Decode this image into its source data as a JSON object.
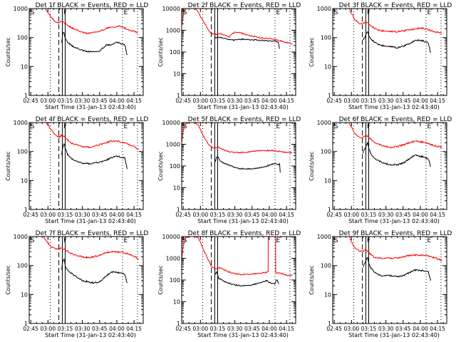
{
  "figure": {
    "layout": "3x3 grid of light-curve panels",
    "common": {
      "ylabel": "Counts/sec",
      "xlabel": "Start Time (31-Jan-13 02:43:40)",
      "x_tick_labels": [
        "02:45",
        "03:00",
        "03:15",
        "03:30",
        "03:45",
        "04:00",
        "04:15"
      ],
      "x_range_minutes_from_0245": [
        -1.33,
        98
      ],
      "legend_black": "Events",
      "legend_red": "LLD",
      "colors": {
        "events": "#000000",
        "lld": "#ff0000"
      },
      "markers": {
        "labels": [
          "S",
          "F",
          "E"
        ],
        "dotted_minutes": [
          17,
          80,
          93
        ],
        "dashed_minutes": [
          24.5
        ],
        "solid_minutes": [
          27.5,
          30
        ]
      }
    }
  },
  "chart_data": [
    {
      "type": "line",
      "title": "Det 1f BLACK = Events, RED = LLD",
      "yscale": "log",
      "ylim": [
        1,
        1000
      ],
      "y_tick_labels": [
        "1",
        "10",
        "100",
        "1000"
      ],
      "x_minutes": [
        0,
        10,
        15,
        20,
        22,
        25,
        27,
        28,
        29,
        30,
        33,
        36,
        40,
        45,
        50,
        55,
        60,
        65,
        70,
        75,
        78,
        80,
        82,
        85,
        88,
        91,
        93
      ],
      "series": [
        {
          "name": "LLD",
          "values": [
            2000,
            1500,
            700,
            400,
            330,
            330,
            380,
            360,
            330,
            300,
            250,
            210,
            180,
            150,
            140,
            150,
            170,
            200,
            230,
            240,
            250,
            230,
            210,
            190,
            170,
            160,
            150
          ]
        },
        {
          "name": "Events",
          "x_minutes": [
            27,
            28,
            29,
            30,
            32,
            35,
            38,
            42,
            46,
            50,
            55,
            60,
            63,
            66,
            70,
            74,
            77,
            80,
            82,
            84
          ],
          "values": [
            70,
            150,
            150,
            90,
            70,
            55,
            45,
            40,
            35,
            33,
            32,
            35,
            45,
            55,
            55,
            70,
            65,
            60,
            55,
            25
          ]
        }
      ]
    },
    {
      "type": "line",
      "title": "Det 2f BLACK = Events, RED = LLD",
      "yscale": "log",
      "ylim": [
        1,
        10000
      ],
      "y_tick_labels": [
        "1",
        "10",
        "100",
        "1000",
        "10000"
      ],
      "x_minutes": [
        -1.3,
        0,
        2,
        6,
        10,
        13,
        16,
        19,
        22,
        25,
        28,
        32,
        36,
        40,
        42,
        45,
        50,
        55,
        60,
        65,
        70,
        75,
        80,
        85,
        90,
        95
      ],
      "series": [
        {
          "name": "LLD",
          "values": [
            1500,
            5000,
            10000,
            10000,
            10000,
            7000,
            3500,
            2000,
            1000,
            700,
            650,
            700,
            600,
            500,
            650,
            800,
            780,
            600,
            550,
            480,
            430,
            420,
            380,
            330,
            280,
            240
          ]
        },
        {
          "name": "Events",
          "x_minutes": [
            28,
            30,
            33,
            36,
            40,
            44,
            48,
            52,
            56,
            60,
            65,
            70,
            75,
            80,
            83,
            84
          ],
          "values": [
            450,
            480,
            460,
            420,
            380,
            350,
            380,
            390,
            360,
            370,
            350,
            340,
            320,
            320,
            280,
            140
          ]
        }
      ],
      "annotations": [
        "S",
        "E"
      ]
    },
    {
      "type": "line",
      "title": "Det 3f BLACK = Events, RED = LLD",
      "yscale": "log",
      "ylim": [
        1,
        1000
      ],
      "y_tick_labels": [
        "1",
        "10",
        "100",
        "1000"
      ],
      "x_minutes": [
        -1.3,
        0,
        10,
        15,
        18,
        22,
        25,
        27,
        29,
        31,
        35,
        40,
        45,
        50,
        55,
        60,
        65,
        70,
        75,
        80,
        85,
        90,
        94
      ],
      "series": [
        {
          "name": "LLD",
          "values": [
            800,
            2000,
            1600,
            700,
            400,
            310,
            300,
            350,
            330,
            280,
            210,
            175,
            165,
            160,
            162,
            170,
            185,
            200,
            210,
            200,
            170,
            150,
            140
          ]
        },
        {
          "name": "Events",
          "x_minutes": [
            25,
            27,
            28,
            29,
            30,
            32,
            35,
            40,
            45,
            50,
            55,
            60,
            65,
            70,
            74,
            78,
            80,
            82,
            84
          ],
          "values": [
            80,
            110,
            150,
            160,
            120,
            90,
            70,
            55,
            50,
            48,
            45,
            50,
            60,
            80,
            80,
            75,
            70,
            65,
            30
          ]
        }
      ]
    },
    {
      "type": "line",
      "title": "Det 4f BLACK = Events, RED = LLD",
      "yscale": "log",
      "ylim": [
        1,
        1000
      ],
      "y_tick_labels": [
        "1",
        "10",
        "100",
        "1000"
      ],
      "x_minutes": [
        -1.3,
        0,
        10,
        15,
        20,
        23,
        25,
        27,
        29,
        31,
        35,
        40,
        45,
        50,
        55,
        60,
        65,
        70,
        75,
        80,
        85,
        90,
        94
      ],
      "series": [
        {
          "name": "LLD",
          "values": [
            900,
            2000,
            1500,
            800,
            450,
            340,
            320,
            370,
            340,
            270,
            200,
            170,
            150,
            140,
            150,
            170,
            200,
            230,
            230,
            210,
            180,
            150,
            120
          ]
        },
        {
          "name": "Events",
          "x_minutes": [
            27,
            28,
            29,
            30,
            32,
            35,
            40,
            45,
            50,
            55,
            60,
            65,
            70,
            74,
            78,
            82,
            84
          ],
          "values": [
            80,
            150,
            190,
            130,
            80,
            60,
            45,
            40,
            38,
            40,
            42,
            50,
            60,
            70,
            65,
            60,
            25
          ]
        }
      ]
    },
    {
      "type": "line",
      "title": "Det 5f BLACK = Events, RED = LLD",
      "yscale": "log",
      "ylim": [
        1,
        10000
      ],
      "y_tick_labels": [
        "1",
        "10",
        "100",
        "1000",
        "10000"
      ],
      "x_minutes": [
        -1.3,
        0,
        2,
        6,
        10,
        13,
        16,
        19,
        22,
        25,
        28,
        30,
        32,
        36,
        40,
        45,
        50,
        55,
        60,
        65,
        70,
        75,
        80,
        85,
        90,
        95
      ],
      "series": [
        {
          "name": "LLD",
          "values": [
            1300,
            4000,
            9000,
            10000,
            10000,
            8000,
            3500,
            1800,
            1000,
            750,
            650,
            750,
            650,
            550,
            450,
            420,
            420,
            430,
            480,
            500,
            520,
            520,
            500,
            460,
            430,
            400
          ]
        },
        {
          "name": "Events",
          "x_minutes": [
            28,
            29,
            30,
            32,
            35,
            40,
            45,
            50,
            55,
            60,
            65,
            70,
            75,
            80,
            82,
            84,
            84.5
          ],
          "values": [
            150,
            250,
            280,
            170,
            140,
            110,
            85,
            75,
            75,
            75,
            80,
            90,
            110,
            130,
            120,
            120,
            50
          ]
        }
      ],
      "annotations": [
        "S",
        "E"
      ]
    },
    {
      "type": "line",
      "title": "Det 6f BLACK = Events, RED = LLD",
      "yscale": "log",
      "ylim": [
        1,
        1000
      ],
      "y_tick_labels": [
        "1",
        "10",
        "100",
        "1000"
      ],
      "x_minutes": [
        -1.3,
        0,
        10,
        15,
        18,
        22,
        25,
        27,
        29,
        31,
        35,
        40,
        45,
        50,
        55,
        60,
        65,
        70,
        75,
        80,
        85,
        90,
        94
      ],
      "series": [
        {
          "name": "LLD",
          "values": [
            900,
            2000,
            1500,
            700,
            400,
            320,
            300,
            370,
            340,
            280,
            210,
            170,
            150,
            140,
            150,
            170,
            200,
            230,
            220,
            200,
            170,
            150,
            140
          ]
        },
        {
          "name": "Events",
          "x_minutes": [
            25,
            27,
            28,
            29,
            30,
            32,
            35,
            40,
            45,
            50,
            55,
            60,
            65,
            70,
            74,
            78,
            82,
            84
          ],
          "values": [
            90,
            140,
            170,
            200,
            130,
            80,
            60,
            45,
            38,
            35,
            35,
            40,
            55,
            75,
            70,
            65,
            55,
            30
          ]
        }
      ]
    },
    {
      "type": "line",
      "title": "Det 7f BLACK = Events, RED = LLD",
      "yscale": "log",
      "ylim": [
        1,
        1000
      ],
      "y_tick_labels": [
        "1",
        "10",
        "100",
        "1000"
      ],
      "x_minutes": [
        -1.3,
        0,
        10,
        15,
        18,
        22,
        25,
        27,
        29,
        31,
        35,
        40,
        45,
        50,
        55,
        60,
        65,
        70,
        75,
        80,
        85,
        90,
        94
      ],
      "series": [
        {
          "name": "LLD",
          "values": [
            1000,
            2000,
            1100,
            600,
            420,
            380,
            380,
            390,
            370,
            330,
            260,
            220,
            200,
            190,
            200,
            230,
            270,
            300,
            300,
            280,
            250,
            210,
            170
          ]
        },
        {
          "name": "Events",
          "x_minutes": [
            27,
            28,
            29,
            30,
            32,
            35,
            40,
            45,
            50,
            55,
            60,
            65,
            70,
            74,
            78,
            82,
            84
          ],
          "values": [
            70,
            150,
            170,
            100,
            70,
            55,
            40,
            30,
            28,
            25,
            28,
            40,
            60,
            60,
            55,
            50,
            25
          ]
        }
      ]
    },
    {
      "type": "line",
      "title": "Det 8f BLACK = Events, RED = LLD",
      "yscale": "log",
      "ylim": [
        1,
        10000
      ],
      "y_tick_labels": [
        "1",
        "10",
        "100",
        "1000",
        "10000"
      ],
      "x_minutes": [
        -1.3,
        0,
        2,
        6,
        10,
        13,
        16,
        19,
        22,
        25,
        28,
        30,
        32,
        36,
        40,
        45,
        50,
        55,
        60,
        65,
        70,
        74,
        74.1,
        80.5,
        80.6,
        85,
        90,
        95
      ],
      "series": [
        {
          "name": "LLD",
          "values": [
            900,
            3500,
            9000,
            10000,
            10000,
            9000,
            4000,
            1800,
            800,
            400,
            320,
            350,
            380,
            290,
            230,
            200,
            180,
            180,
            190,
            200,
            220,
            230,
            10000,
            10000,
            220,
            200,
            170,
            160
          ]
        },
        {
          "name": "Events",
          "x_minutes": [
            28,
            29,
            30,
            31,
            33,
            36,
            40,
            45,
            50,
            55,
            60,
            65,
            70,
            73,
            74,
            80,
            81,
            82,
            83
          ],
          "values": [
            180,
            250,
            170,
            120,
            110,
            85,
            70,
            60,
            55,
            55,
            60,
            70,
            85,
            95,
            80,
            65,
            100,
            100,
            65
          ]
        }
      ],
      "annotations": [
        "S",
        "E"
      ]
    },
    {
      "type": "line",
      "title": "Det 9f BLACK = Events, RED = LLD",
      "yscale": "log",
      "ylim": [
        1,
        1000
      ],
      "y_tick_labels": [
        "1",
        "10",
        "100",
        "1000"
      ],
      "x_minutes": [
        -1.3,
        0,
        10,
        15,
        18,
        22,
        25,
        27,
        29,
        31,
        35,
        40,
        45,
        50,
        55,
        60,
        65,
        70,
        75,
        80,
        85,
        90,
        94
      ],
      "series": [
        {
          "name": "LLD",
          "values": [
            800,
            2000,
            1500,
            700,
            400,
            310,
            310,
            350,
            320,
            260,
            190,
            180,
            180,
            180,
            185,
            200,
            220,
            230,
            230,
            220,
            200,
            170,
            150
          ]
        },
        {
          "name": "Events",
          "x_minutes": [
            25,
            27,
            28,
            29,
            30,
            32,
            35,
            40,
            45,
            50,
            55,
            60,
            65,
            70,
            74,
            78,
            82,
            84
          ],
          "values": [
            90,
            130,
            160,
            200,
            120,
            80,
            60,
            45,
            45,
            45,
            42,
            45,
            55,
            70,
            70,
            65,
            60,
            30
          ]
        }
      ]
    }
  ]
}
